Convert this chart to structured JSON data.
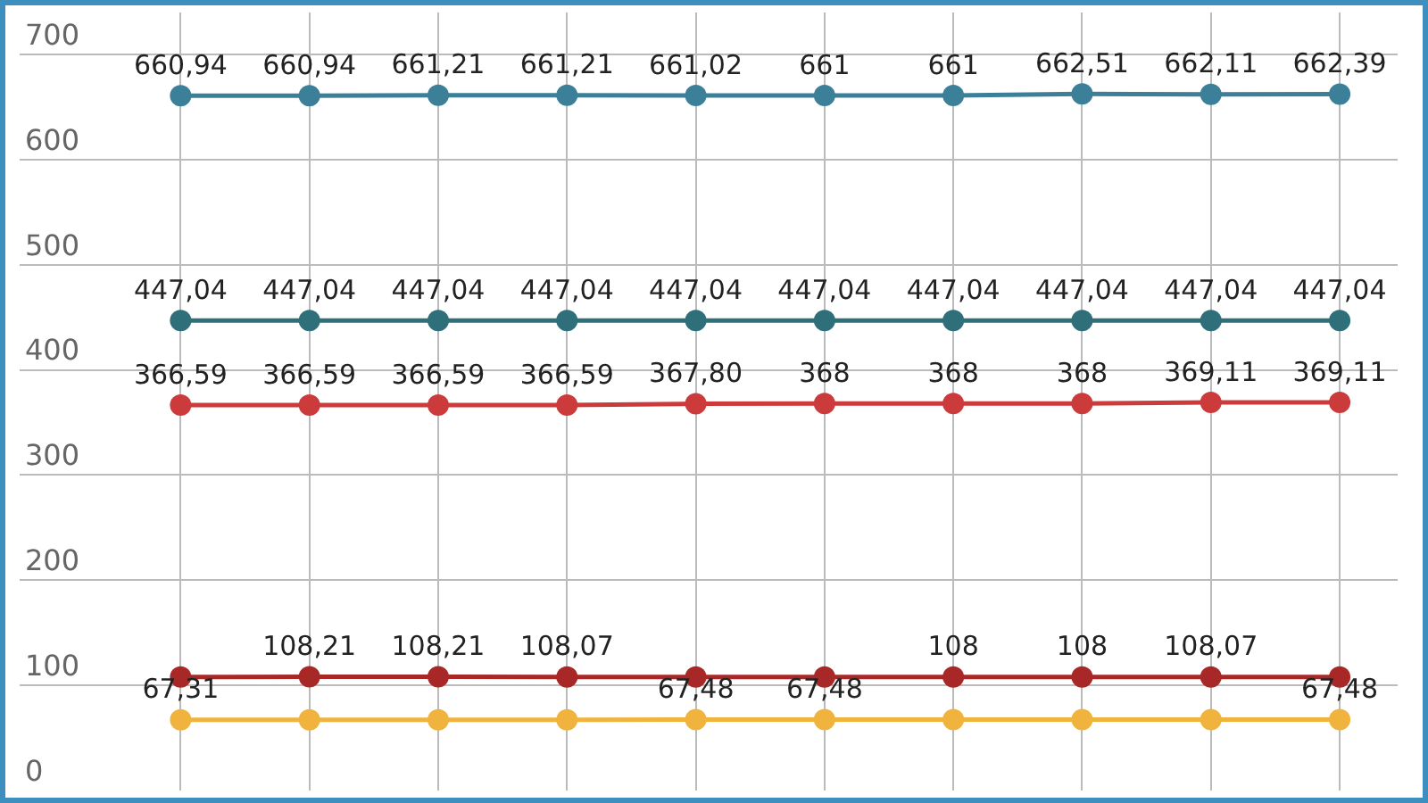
{
  "chart_data": {
    "type": "line",
    "categories": [
      null,
      null,
      null,
      null,
      null,
      null,
      null,
      null,
      null,
      null
    ],
    "ylim": [
      0,
      740
    ],
    "yticks": [
      0,
      100,
      200,
      300,
      400,
      500,
      600,
      700
    ],
    "grid": true,
    "marker": "circle",
    "line_style": "solid",
    "tick_labels": "y",
    "series": [
      {
        "color": "#3b7f99",
        "values": [
          660.94,
          660.94,
          661.21,
          661.21,
          661.02,
          661,
          661,
          662.51,
          662.11,
          662.39
        ],
        "value_labels": [
          "660,94",
          "660,94",
          "661,21",
          "661,21",
          "661,02",
          "661",
          "661",
          "662,51",
          "662,11",
          "662,39"
        ]
      },
      {
        "color": "#2f6f7a",
        "values": [
          447.04,
          447.04,
          447.04,
          447.04,
          447.04,
          447.04,
          447.04,
          447.04,
          447.04,
          447.04
        ],
        "value_labels": [
          "447,04",
          "447,04",
          "447,04",
          "447,04",
          "447,04",
          "447,04",
          "447,04",
          "447,04",
          "447,04",
          "447,04"
        ]
      },
      {
        "color": "#cc3b3b",
        "values": [
          366.59,
          366.59,
          366.59,
          366.59,
          367.8,
          368,
          368,
          368,
          369.11,
          369.11
        ],
        "value_labels": [
          "366,59",
          "366,59",
          "366,59",
          "366,59",
          "367,80",
          "368",
          "368",
          "368",
          "369,11",
          "369,11"
        ]
      },
      {
        "color": "#a82828",
        "values": [
          108,
          108.21,
          108.21,
          108.07,
          108,
          108,
          108,
          108,
          108.07,
          108
        ],
        "value_labels": [
          null,
          "108,21",
          "108,21",
          "108,07",
          null,
          null,
          "108",
          "108",
          "108,07",
          null
        ]
      },
      {
        "color": "#f0b43e",
        "values": [
          67.31,
          67.31,
          67.31,
          67.31,
          67.48,
          67.48,
          67.48,
          67.48,
          67.48,
          67.48
        ],
        "value_labels": [
          "67,31",
          null,
          null,
          null,
          "67,48",
          "67,48",
          null,
          null,
          null,
          "67,48"
        ]
      }
    ]
  }
}
